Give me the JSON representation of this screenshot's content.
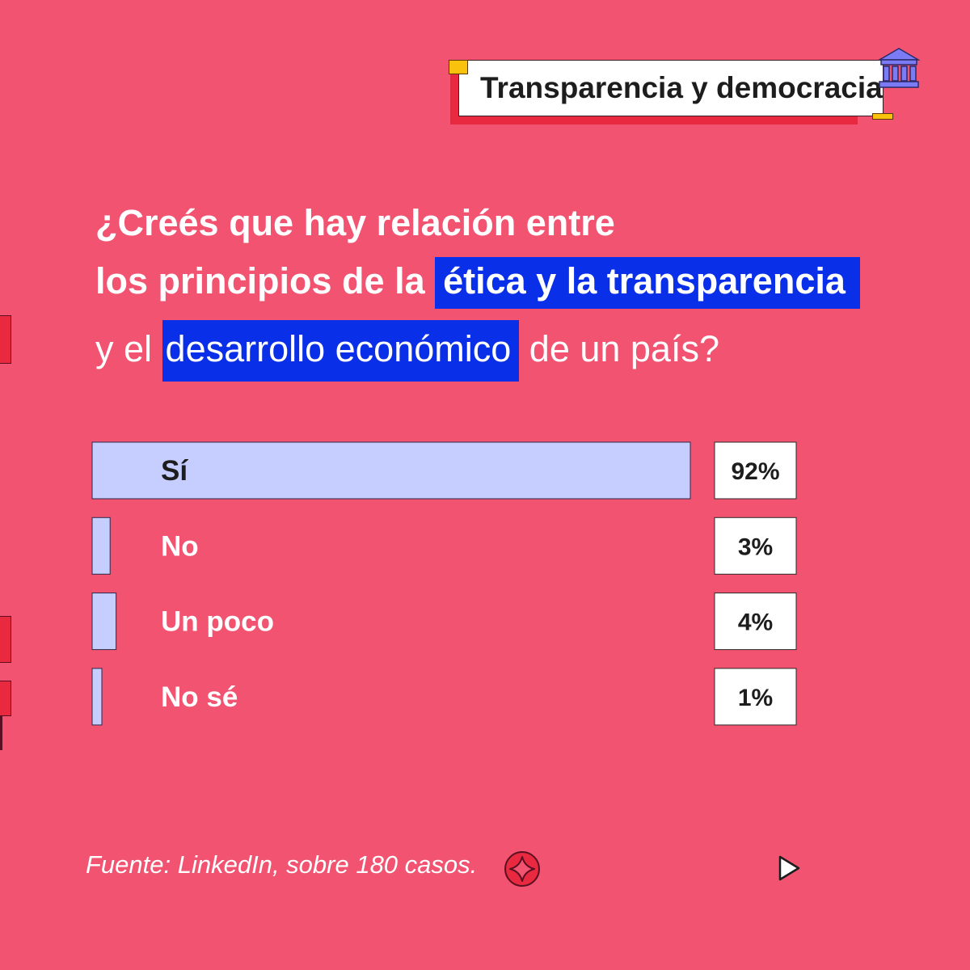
{
  "tag": {
    "label": "Transparencia y democracia",
    "icon": "bank-building-icon"
  },
  "question": {
    "line1": "¿Creés que hay relación entre",
    "line2_prefix": "los principios de la",
    "line2_highlight": "ética y la transparencia",
    "line3_prefix": "y el",
    "line3_highlight": "desarrollo económico",
    "line3_suffix": "de un país?"
  },
  "chart_data": {
    "type": "bar",
    "orientation": "horizontal",
    "categories": [
      "Sí",
      "No",
      "Un poco",
      "No sé"
    ],
    "values": [
      92,
      3,
      4,
      1
    ],
    "value_labels": [
      "92%",
      "3%",
      "4%",
      "1%"
    ],
    "unit": "%"
  },
  "footer": {
    "source": "Fuente: LinkedIn, sobre 180 casos.",
    "star_icon": "sparkle-star-icon",
    "next_icon": "play-arrow-icon"
  },
  "colors": {
    "background": "#F25371",
    "bar_fill": "#C5CEFF",
    "highlight": "#0A2FE8",
    "accent_red": "#E8293F",
    "accent_yellow": "#F8C20D"
  }
}
